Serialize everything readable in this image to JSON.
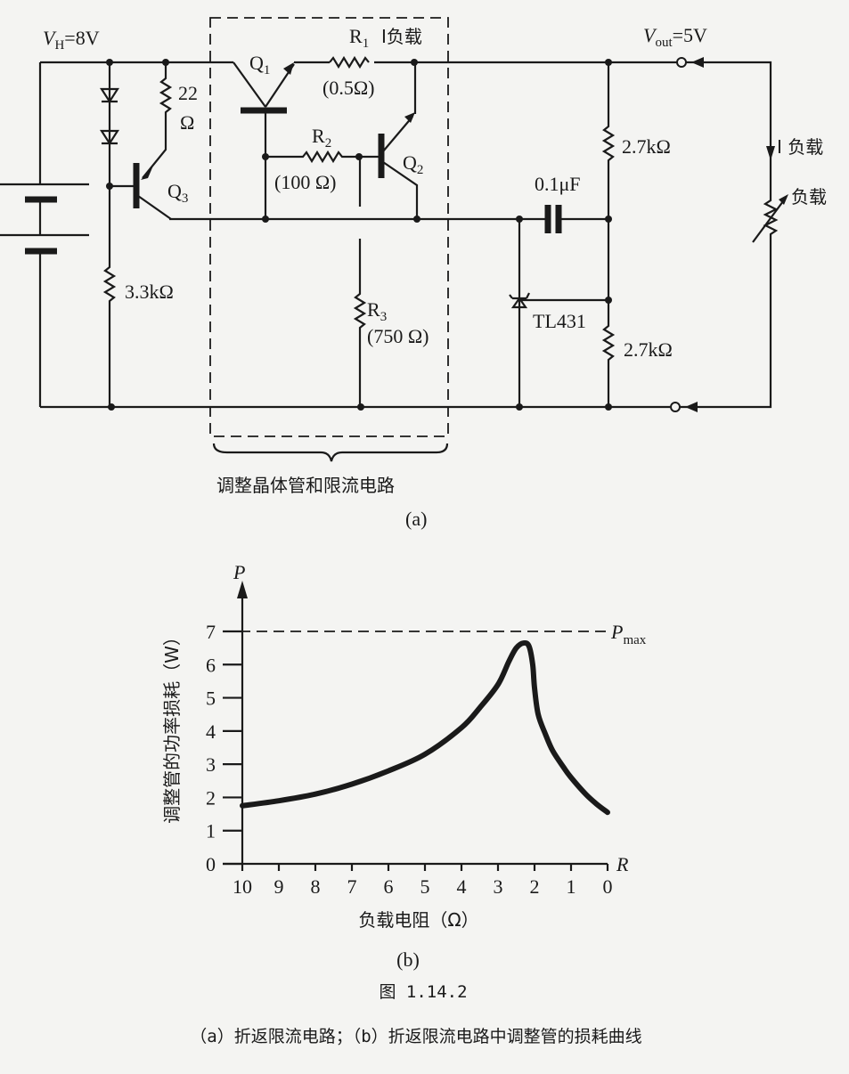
{
  "circuit": {
    "vh_label": "V",
    "vh_sub": "H",
    "vh_value": "=8V",
    "vout_label": "V",
    "vout_sub": "out",
    "vout_value": "=5V",
    "q1": "Q",
    "q1_sub": "1",
    "q2": "Q",
    "q2_sub": "2",
    "q3": "Q",
    "q3_sub": "3",
    "r1": "R",
    "r1_sub": "1",
    "r1_current": "I负载",
    "r1_value": "(0.5Ω)",
    "r2": "R",
    "r2_sub": "2",
    "r2_value": "(100 Ω)",
    "r3": "R",
    "r3_sub": "3",
    "r3_value": "(750 Ω)",
    "r22_value": "22",
    "r22_unit": "Ω",
    "r33_value": "3.3kΩ",
    "r27_top": "2.7kΩ",
    "r27_bottom": "2.7kΩ",
    "cap_value": "0.1μF",
    "tl431": "TL431",
    "load_current": "I 负载",
    "load": "负载",
    "box_caption": "调整晶体管和限流电路",
    "subfig": "(a)"
  },
  "chart_data": {
    "type": "line",
    "xlabel": "负载电阻（Ω）",
    "ylabel": "调整管的功率损耗（W）",
    "x_axis_symbol": "R",
    "y_axis_symbol": "P",
    "xlim": [
      10,
      0
    ],
    "ylim": [
      0,
      7
    ],
    "x_reversed": true,
    "xticks": [
      "10",
      "9",
      "8",
      "7",
      "6",
      "5",
      "4",
      "3",
      "2",
      "1",
      "0"
    ],
    "yticks": [
      "0",
      "1",
      "2",
      "3",
      "4",
      "5",
      "6",
      "7"
    ],
    "grid": false,
    "reference_line": {
      "label": "P",
      "label_sub": "max",
      "value": 7,
      "style": "dashed"
    },
    "series": [
      {
        "x": [
          10,
          9,
          8,
          7,
          6,
          5,
          4,
          3.5,
          3,
          2.7,
          2.5,
          2.3,
          2.15,
          2.05,
          2.0,
          1.9,
          1.7,
          1.5,
          1.2,
          1,
          0.6,
          0.3,
          0
        ],
        "y": [
          1.75,
          1.9,
          2.1,
          2.4,
          2.8,
          3.3,
          4.1,
          4.7,
          5.4,
          6.1,
          6.5,
          6.65,
          6.55,
          6.0,
          5.3,
          4.5,
          3.9,
          3.4,
          2.9,
          2.6,
          2.1,
          1.8,
          1.55
        ]
      }
    ],
    "subfig": "(b)"
  },
  "caption": {
    "figure_number": "图  1.14.2",
    "text": "（a）折返限流电路；（b）折返限流电路中调整管的损耗曲线"
  }
}
